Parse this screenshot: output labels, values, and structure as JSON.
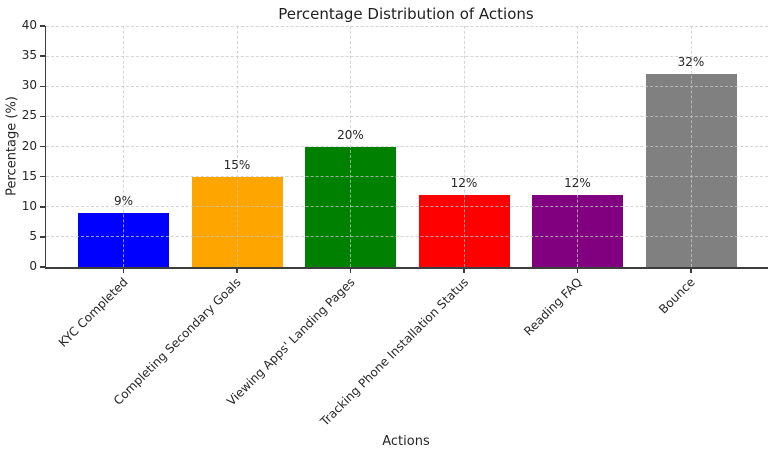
{
  "figure": {
    "background": "#ffffff"
  },
  "chart_data": {
    "type": "bar",
    "title": "Percentage Distribution of Actions",
    "xlabel": "Actions",
    "ylabel": "Percentage (%)",
    "categories": [
      "KYC Completed",
      "Completing Secondary Goals",
      "Viewing Apps' Landing Pages",
      "Tracking Phone Installation Status",
      "Reading FAQ",
      "Bounce"
    ],
    "values": [
      9,
      15,
      20,
      12,
      12,
      32
    ],
    "bar_labels": [
      "9%",
      "15%",
      "20%",
      "12%",
      "12%",
      "32%"
    ],
    "colors": [
      "#0000ff",
      "#ffa500",
      "#008000",
      "#ff0000",
      "#800080",
      "#808080"
    ],
    "ylim": [
      0,
      40
    ],
    "yticks": [
      0,
      5,
      10,
      15,
      20,
      25,
      30,
      35,
      40
    ],
    "grid": true,
    "grid_style": "dashed",
    "legend": "none",
    "tick_label_rotation_deg": 45
  },
  "colors": {
    "axis": "#3d3d3d",
    "grid": "#c7c7c7",
    "text": "#262626",
    "background": "#ffffff"
  }
}
